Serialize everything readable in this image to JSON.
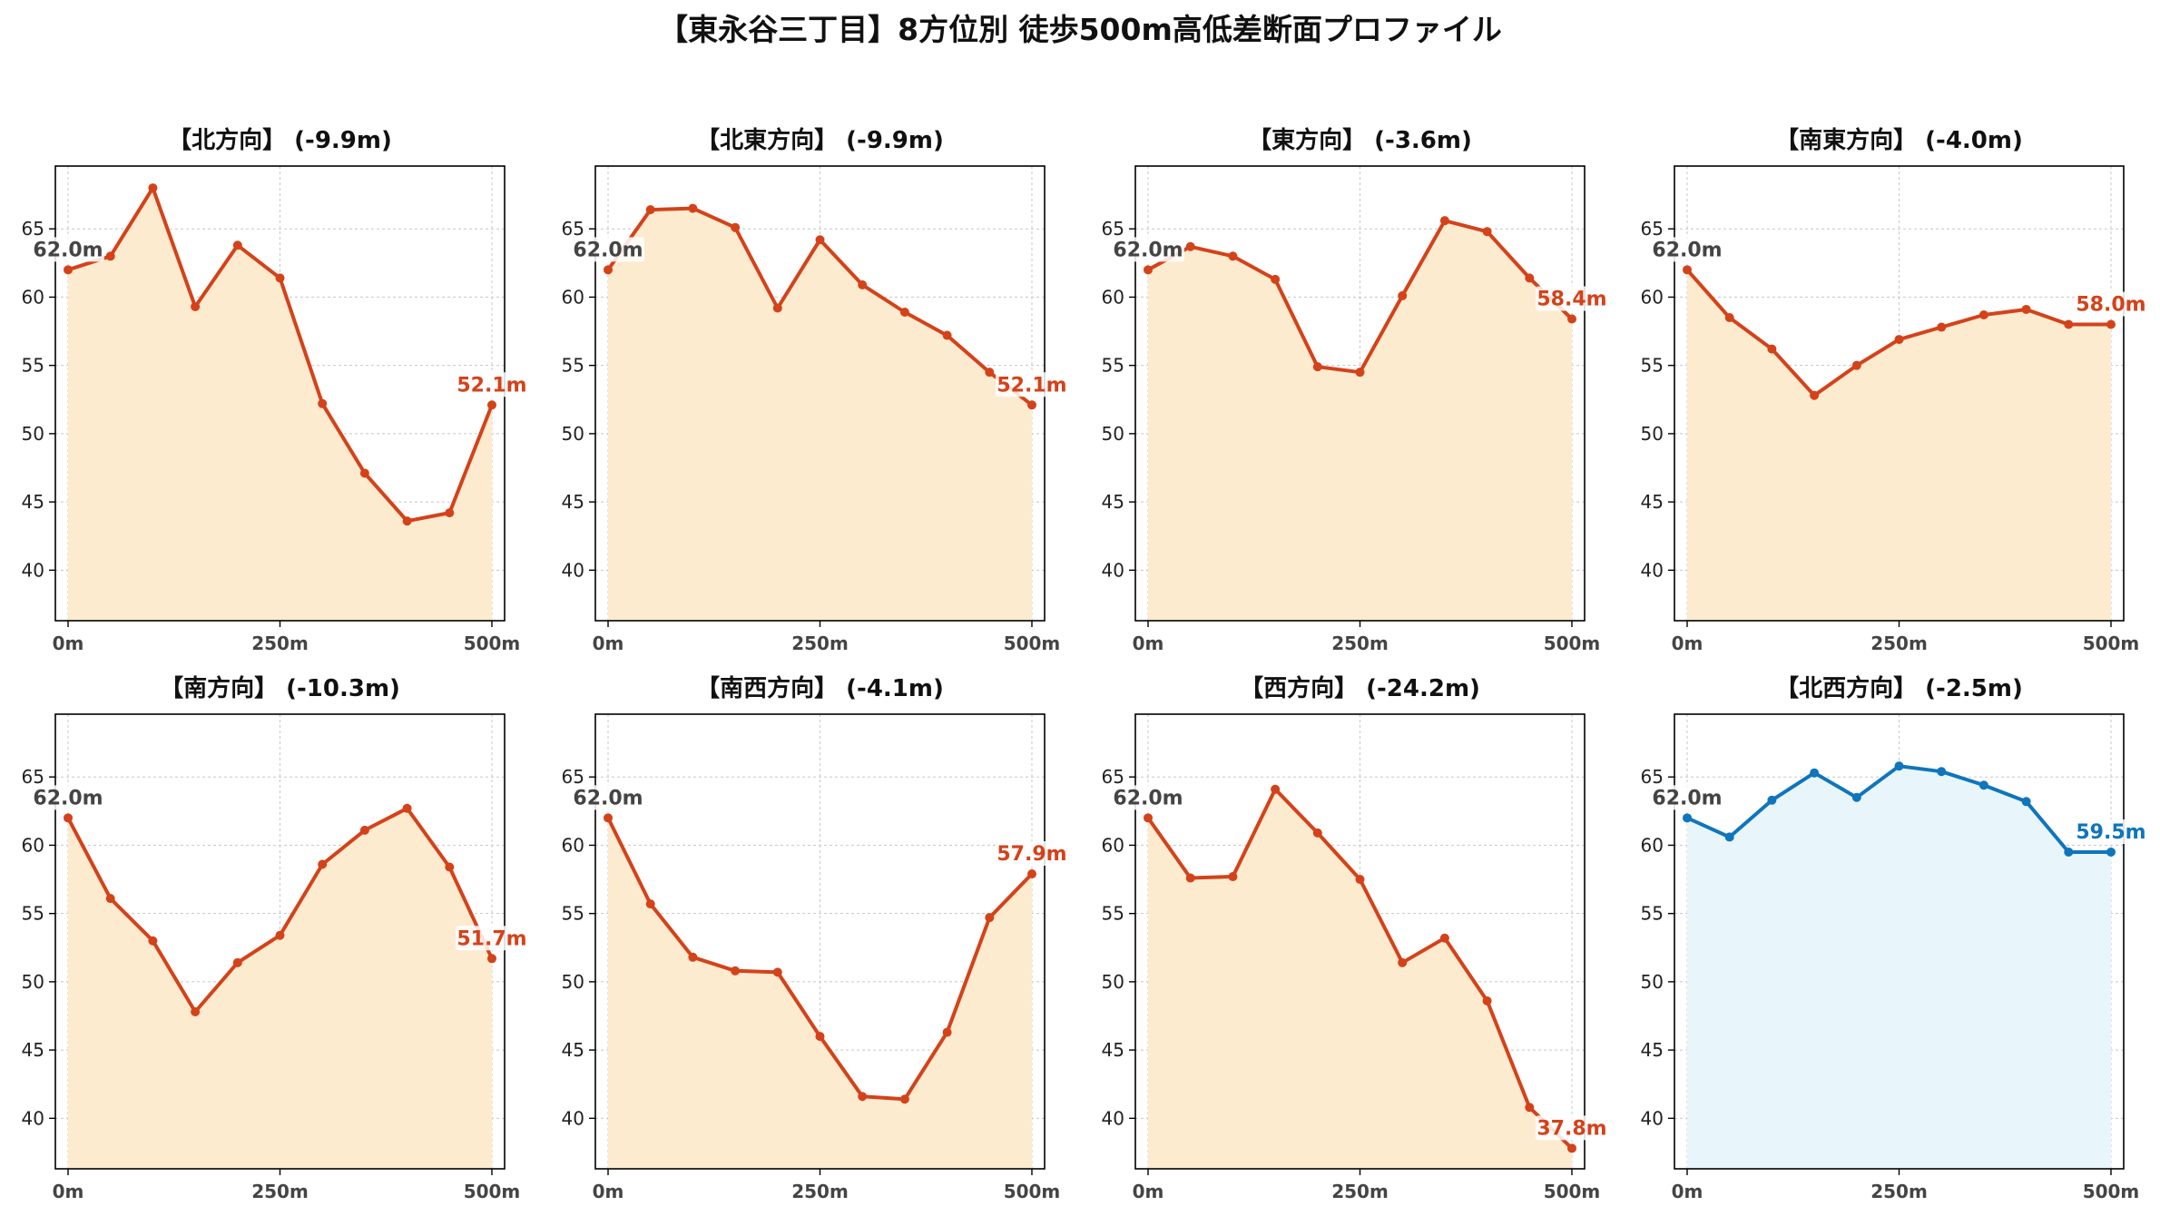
{
  "figure_title": "【東永谷三丁目】8方位別 徒歩500m高低差断面プロファイル",
  "colors": {
    "descent": "#d4421a",
    "descent_fill": "#fdebd0",
    "ascent": "#0f75bc",
    "ascent_fill": "#e8f6fc",
    "start_label": "#444444",
    "grid": "#c8c8c8"
  },
  "chart_data": [
    {
      "type": "area",
      "title": "【北方向】 (-9.9m)",
      "trend": "descent",
      "x": [
        0,
        50,
        100,
        150,
        200,
        250,
        300,
        350,
        400,
        450,
        500
      ],
      "y": [
        62.0,
        63.0,
        68.0,
        59.3,
        63.8,
        61.4,
        52.2,
        47.1,
        43.6,
        44.2,
        52.1
      ],
      "start_label": "62.0m",
      "end_label": "52.1m"
    },
    {
      "type": "area",
      "title": "【北東方向】 (-9.9m)",
      "trend": "descent",
      "x": [
        0,
        50,
        100,
        150,
        200,
        250,
        300,
        350,
        400,
        450,
        500
      ],
      "y": [
        62.0,
        66.4,
        66.5,
        65.1,
        59.2,
        64.2,
        60.9,
        58.9,
        57.2,
        54.5,
        52.1
      ],
      "start_label": "62.0m",
      "end_label": "52.1m"
    },
    {
      "type": "area",
      "title": "【東方向】 (-3.6m)",
      "trend": "descent",
      "x": [
        0,
        50,
        100,
        150,
        200,
        250,
        300,
        350,
        400,
        450,
        500
      ],
      "y": [
        62.0,
        63.7,
        63.0,
        61.3,
        54.9,
        54.5,
        60.1,
        65.6,
        64.8,
        61.4,
        58.4
      ],
      "start_label": "62.0m",
      "end_label": "58.4m"
    },
    {
      "type": "area",
      "title": "【南東方向】 (-4.0m)",
      "trend": "descent",
      "x": [
        0,
        50,
        100,
        150,
        200,
        250,
        300,
        350,
        400,
        450,
        500
      ],
      "y": [
        62.0,
        58.5,
        56.2,
        52.8,
        55.0,
        56.9,
        57.8,
        58.7,
        59.1,
        58.0,
        58.0
      ],
      "start_label": "62.0m",
      "end_label": "58.0m"
    },
    {
      "type": "area",
      "title": "【南方向】 (-10.3m)",
      "trend": "descent",
      "x": [
        0,
        50,
        100,
        150,
        200,
        250,
        300,
        350,
        400,
        450,
        500
      ],
      "y": [
        62.0,
        56.1,
        53.0,
        47.8,
        51.4,
        53.4,
        58.6,
        61.1,
        62.7,
        58.4,
        51.7
      ],
      "start_label": "62.0m",
      "end_label": "51.7m"
    },
    {
      "type": "area",
      "title": "【南西方向】 (-4.1m)",
      "trend": "descent",
      "x": [
        0,
        50,
        100,
        150,
        200,
        250,
        300,
        350,
        400,
        450,
        500
      ],
      "y": [
        62.0,
        55.7,
        51.8,
        50.8,
        50.7,
        46.0,
        41.6,
        41.4,
        46.3,
        54.7,
        57.9
      ],
      "start_label": "62.0m",
      "end_label": "57.9m"
    },
    {
      "type": "area",
      "title": "【西方向】 (-24.2m)",
      "trend": "descent",
      "x": [
        0,
        50,
        100,
        150,
        200,
        250,
        300,
        350,
        400,
        450,
        500
      ],
      "y": [
        62.0,
        57.6,
        57.7,
        64.1,
        60.9,
        57.5,
        51.4,
        53.2,
        48.6,
        40.8,
        37.8
      ],
      "start_label": "62.0m",
      "end_label": "37.8m"
    },
    {
      "type": "area",
      "title": "【北西方向】 (-2.5m)",
      "trend": "ascent",
      "x": [
        0,
        50,
        100,
        150,
        200,
        250,
        300,
        350,
        400,
        450,
        500
      ],
      "y": [
        62.0,
        60.6,
        63.3,
        65.3,
        63.5,
        65.8,
        65.4,
        64.4,
        63.2,
        59.5,
        59.5
      ],
      "start_label": "62.0m",
      "end_label": "59.5m"
    }
  ],
  "axes": {
    "xlim": [
      -15,
      515
    ],
    "ylim": [
      36.3,
      69.6
    ],
    "yticks": [
      40,
      45,
      50,
      55,
      60,
      65
    ],
    "ytick_labels": [
      "40",
      "45",
      "50",
      "55",
      "60",
      "65"
    ],
    "xticks": [
      0,
      250,
      500
    ],
    "xtick_labels": [
      "0m",
      "250m",
      "500m"
    ],
    "grid": true
  }
}
